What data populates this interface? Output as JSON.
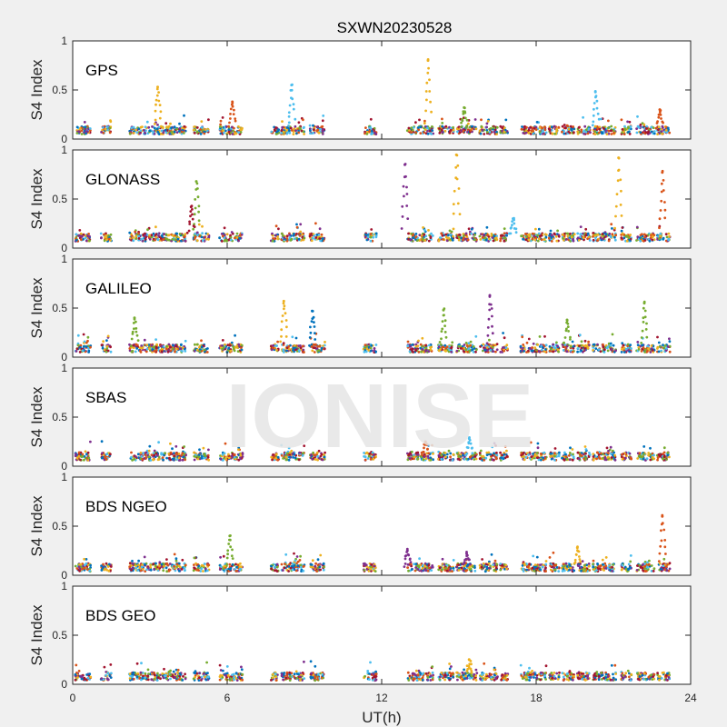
{
  "figure_title": "SXWN20230528",
  "watermark": "IONISE",
  "colors": {
    "background": "#f0f0f0",
    "axes_background": "#ffffff",
    "axes_line": "#262626",
    "watermark": "#e6e6e6",
    "series_palette": [
      "#0072BD",
      "#D95319",
      "#EDB120",
      "#7E2F8E",
      "#77AC30",
      "#4DBEEE",
      "#A2142F"
    ]
  },
  "chart_data": {
    "type": "scatter",
    "title": "SXWN20230528",
    "xlabel": "UT(h)",
    "x_ticks": [
      0,
      6,
      12,
      18,
      24
    ],
    "xlim": [
      0,
      24
    ],
    "grid": false,
    "legend": "none",
    "panels": [
      {
        "label": "GPS",
        "ylabel": "S4 Index",
        "ylim": [
          0,
          1
        ],
        "y_ticks": [
          0,
          0.5,
          1
        ],
        "baseline": 0.09,
        "peaks": [
          {
            "x": 3.3,
            "y": 0.53,
            "series": 2
          },
          {
            "x": 6.2,
            "y": 0.38,
            "series": 1
          },
          {
            "x": 8.5,
            "y": 0.55,
            "series": 5
          },
          {
            "x": 13.8,
            "y": 0.8,
            "series": 2
          },
          {
            "x": 15.2,
            "y": 0.32,
            "series": 4
          },
          {
            "x": 20.3,
            "y": 0.48,
            "series": 5
          },
          {
            "x": 22.8,
            "y": 0.3,
            "series": 1
          }
        ]
      },
      {
        "label": "GLONASS",
        "ylabel": "S4 Index",
        "ylim": [
          0,
          1
        ],
        "y_ticks": [
          0,
          0.5,
          1
        ],
        "baseline": 0.11,
        "peaks": [
          {
            "x": 4.8,
            "y": 0.68,
            "series": 4
          },
          {
            "x": 4.6,
            "y": 0.42,
            "series": 6
          },
          {
            "x": 12.9,
            "y": 0.85,
            "series": 3
          },
          {
            "x": 14.9,
            "y": 0.95,
            "series": 2
          },
          {
            "x": 17.1,
            "y": 0.3,
            "series": 5
          },
          {
            "x": 21.2,
            "y": 0.92,
            "series": 2
          },
          {
            "x": 22.9,
            "y": 0.77,
            "series": 1
          }
        ]
      },
      {
        "label": "GALILEO",
        "ylabel": "S4 Index",
        "ylim": [
          0,
          1
        ],
        "y_ticks": [
          0,
          0.5,
          1
        ],
        "baseline": 0.09,
        "peaks": [
          {
            "x": 2.4,
            "y": 0.4,
            "series": 4
          },
          {
            "x": 8.2,
            "y": 0.57,
            "series": 2
          },
          {
            "x": 9.3,
            "y": 0.47,
            "series": 0
          },
          {
            "x": 14.4,
            "y": 0.48,
            "series": 4
          },
          {
            "x": 16.2,
            "y": 0.63,
            "series": 3
          },
          {
            "x": 19.2,
            "y": 0.38,
            "series": 4
          },
          {
            "x": 22.2,
            "y": 0.55,
            "series": 4
          }
        ]
      },
      {
        "label": "SBAS",
        "ylabel": "S4 Index",
        "ylim": [
          0,
          1
        ],
        "y_ticks": [
          0,
          0.5,
          1
        ],
        "baseline": 0.1,
        "peaks": [
          {
            "x": 13.7,
            "y": 0.25,
            "series": 1
          },
          {
            "x": 15.4,
            "y": 0.28,
            "series": 5
          }
        ]
      },
      {
        "label": "BDS NGEO",
        "ylabel": "S4 Index",
        "ylim": [
          0,
          1
        ],
        "y_ticks": [
          0,
          0.5,
          1
        ],
        "baseline": 0.08,
        "peaks": [
          {
            "x": 6.1,
            "y": 0.4,
            "series": 4
          },
          {
            "x": 13.0,
            "y": 0.25,
            "series": 3
          },
          {
            "x": 15.3,
            "y": 0.22,
            "series": 3
          },
          {
            "x": 19.6,
            "y": 0.28,
            "series": 2
          },
          {
            "x": 22.9,
            "y": 0.6,
            "series": 1
          }
        ]
      },
      {
        "label": "BDS GEO",
        "ylabel": "S4 Index",
        "ylim": [
          0,
          1
        ],
        "y_ticks": [
          0,
          0.5,
          1
        ],
        "baseline": 0.08,
        "peaks": [
          {
            "x": 15.4,
            "y": 0.25,
            "series": 2
          }
        ]
      }
    ],
    "data_segments_hours": [
      [
        0.1,
        0.7
      ],
      [
        1.1,
        1.5
      ],
      [
        2.2,
        4.4
      ],
      [
        4.7,
        5.3
      ],
      [
        5.7,
        6.6
      ],
      [
        7.7,
        8.0
      ],
      [
        8.1,
        9.0
      ],
      [
        9.2,
        9.8
      ],
      [
        11.3,
        11.8
      ],
      [
        13.0,
        14.0
      ],
      [
        14.2,
        14.8
      ],
      [
        14.9,
        15.7
      ],
      [
        15.8,
        16.5
      ],
      [
        16.6,
        16.9
      ],
      [
        17.4,
        18.4
      ],
      [
        18.5,
        18.9
      ],
      [
        19.0,
        19.5
      ],
      [
        19.6,
        20.1
      ],
      [
        20.2,
        21.1
      ],
      [
        21.3,
        21.7
      ],
      [
        21.9,
        22.6
      ],
      [
        22.7,
        23.2
      ]
    ]
  }
}
